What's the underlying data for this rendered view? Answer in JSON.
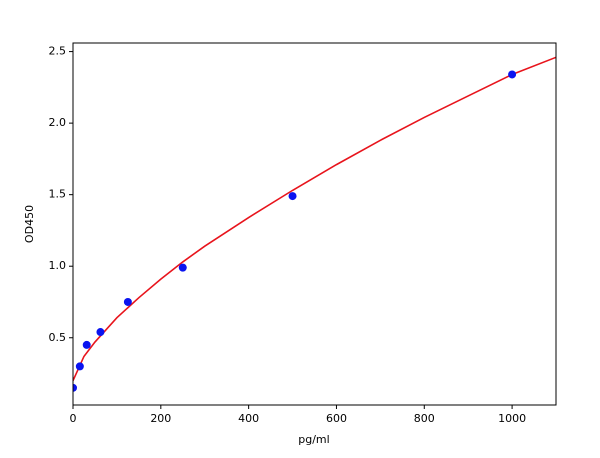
{
  "chart_data": {
    "type": "scatter",
    "xlabel": "pg/ml",
    "ylabel": "OD450",
    "xlim": [
      0,
      1100
    ],
    "ylim": [
      0.03,
      2.56
    ],
    "xticks": [
      0,
      200,
      400,
      600,
      800,
      1000
    ],
    "yticks": [
      0.5,
      {
        "value": 1,
        "label": "1.0"
      },
      1.5,
      {
        "value": 2,
        "label": "2.0"
      },
      2.5
    ],
    "series": [
      {
        "type": "line",
        "color": "#e8141c",
        "x": [
          0,
          25,
          50,
          100,
          150,
          200,
          250,
          300,
          400,
          500,
          600,
          700,
          800,
          900,
          1000,
          1100
        ],
        "values": [
          0.2,
          0.37,
          0.47,
          0.64,
          0.78,
          0.91,
          1.03,
          1.14,
          1.34,
          1.53,
          1.71,
          1.88,
          2.04,
          2.19,
          2.34,
          2.46
        ]
      },
      {
        "type": "scatter",
        "color": "#0a14f0",
        "x": [
          0,
          15.6,
          31.25,
          62.5,
          125,
          250,
          500,
          1000
        ],
        "values": [
          0.15,
          0.3,
          0.45,
          0.54,
          0.75,
          0.99,
          1.49,
          2.34
        ]
      }
    ]
  }
}
